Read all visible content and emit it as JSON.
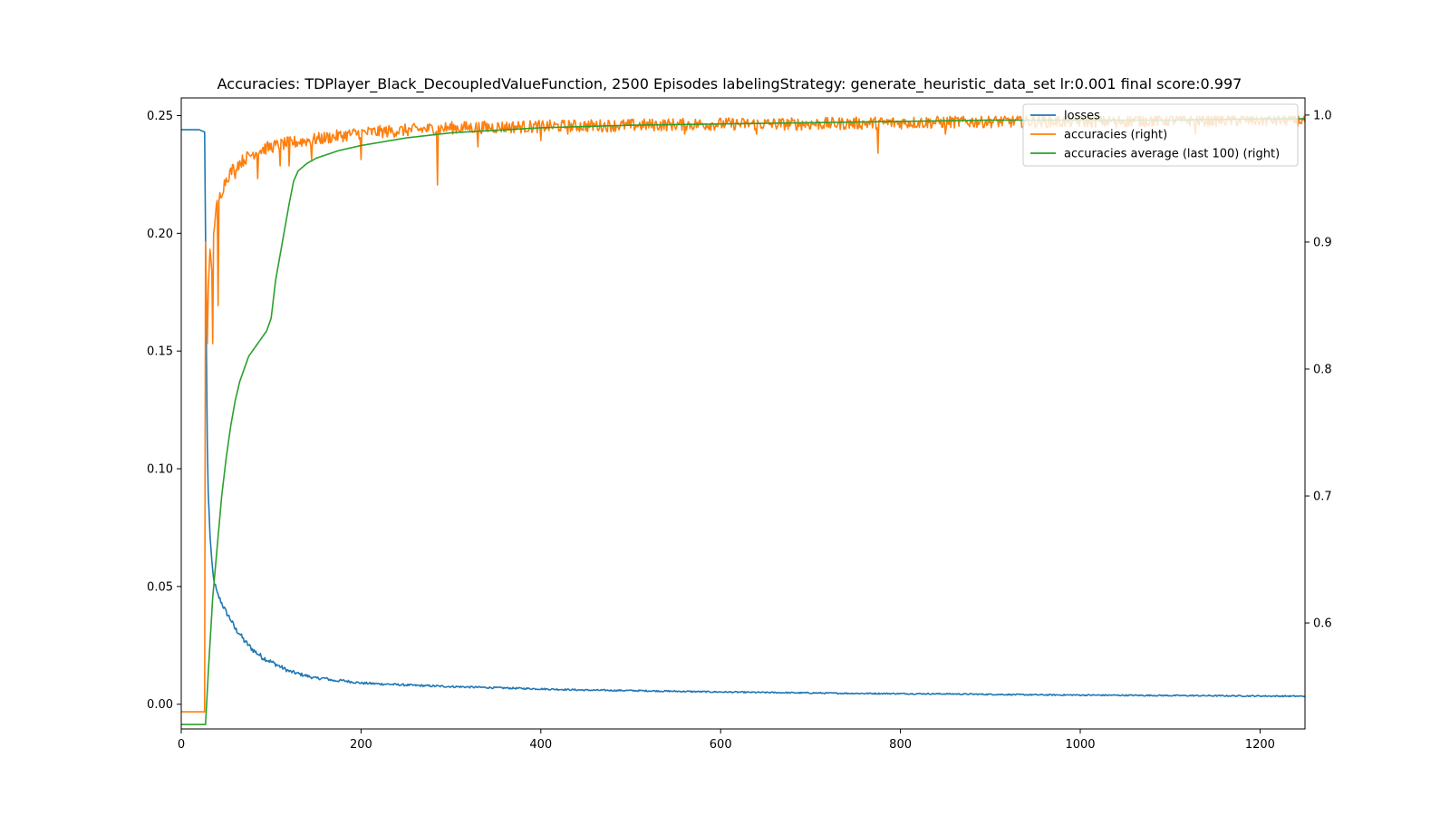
{
  "chart_data": {
    "type": "line",
    "title": "Accuracies: TDPlayer_Black_DecoupledValueFunction, 2500 Episodes labelingStrategy: generate_heuristic_data_set lr:0.001 final score:0.997",
    "xlabel": "",
    "ylabel": "",
    "xlim": [
      0,
      1250
    ],
    "ylim": [
      -0.0105,
      0.2575
    ],
    "y2lim": [
      0.5165,
      1.0135
    ],
    "xticks": [
      "0",
      "200",
      "400",
      "600",
      "800",
      "1000",
      "1200"
    ],
    "yticks": [
      "0.00",
      "0.05",
      "0.10",
      "0.15",
      "0.20",
      "0.25"
    ],
    "y2ticks": [
      "0.6",
      "0.7",
      "0.8",
      "0.9",
      "1.0"
    ],
    "grid": false,
    "legend_position": "top-right",
    "series": [
      {
        "name": "losses",
        "axis": "left",
        "color": "#1f77b4",
        "x": [
          0,
          10,
          20,
          26,
          27,
          28,
          29,
          30,
          32,
          34,
          36,
          38,
          40,
          45,
          50,
          55,
          60,
          65,
          70,
          75,
          80,
          90,
          100,
          110,
          120,
          130,
          140,
          150,
          160,
          170,
          180,
          200,
          230,
          260,
          300,
          350,
          400,
          450,
          500,
          550,
          600,
          650,
          700,
          750,
          800,
          850,
          900,
          950,
          1000,
          1050,
          1100,
          1150,
          1200,
          1250
        ],
        "y": [
          0.244,
          0.244,
          0.244,
          0.243,
          0.2,
          0.15,
          0.11,
          0.09,
          0.072,
          0.06,
          0.053,
          0.05,
          0.047,
          0.043,
          0.039,
          0.036,
          0.032,
          0.03,
          0.027,
          0.025,
          0.023,
          0.02,
          0.018,
          0.016,
          0.014,
          0.013,
          0.012,
          0.011,
          0.011,
          0.01,
          0.01,
          0.009,
          0.0085,
          0.008,
          0.0075,
          0.007,
          0.0065,
          0.006,
          0.0058,
          0.0055,
          0.0052,
          0.005,
          0.0048,
          0.0046,
          0.0045,
          0.0044,
          0.0042,
          0.004,
          0.0039,
          0.0038,
          0.0037,
          0.0036,
          0.0035,
          0.0034
        ],
        "noise": 0.0011
      },
      {
        "name": "accuracies (right)",
        "axis": "right",
        "color": "#ff7f0e",
        "x": [
          0,
          26,
          27,
          28,
          29,
          30,
          32,
          34,
          36,
          38,
          40,
          45,
          50,
          55,
          60,
          70,
          80,
          90,
          100,
          120,
          140,
          160,
          180,
          200,
          250,
          300,
          400,
          500,
          600,
          700,
          800,
          900,
          1000,
          1100,
          1200,
          1250
        ],
        "y": [
          0.53,
          0.53,
          0.9,
          0.86,
          0.82,
          0.86,
          0.89,
          0.88,
          0.91,
          0.92,
          0.93,
          0.94,
          0.95,
          0.955,
          0.96,
          0.965,
          0.97,
          0.973,
          0.975,
          0.978,
          0.98,
          0.982,
          0.984,
          0.986,
          0.988,
          0.99,
          0.991,
          0.992,
          0.993,
          0.993,
          0.994,
          0.995,
          0.995,
          0.996,
          0.996,
          0.996
        ],
        "noise": 0.005,
        "dips": [
          [
            35,
            0.82
          ],
          [
            41,
            0.85
          ],
          [
            60,
            0.95
          ],
          [
            85,
            0.95
          ],
          [
            110,
            0.96
          ],
          [
            120,
            0.96
          ],
          [
            145,
            0.965
          ],
          [
            200,
            0.965
          ],
          [
            285,
            0.945
          ],
          [
            330,
            0.975
          ],
          [
            400,
            0.98
          ],
          [
            430,
            0.985
          ],
          [
            560,
            0.985
          ],
          [
            640,
            0.985
          ],
          [
            775,
            0.97
          ],
          [
            850,
            0.985
          ],
          [
            1040,
            0.99
          ],
          [
            1128,
            0.985
          ]
        ]
      },
      {
        "name": "accuracies average (last 100) (right)",
        "axis": "right",
        "color": "#2ca02c",
        "x": [
          0,
          27,
          30,
          35,
          40,
          45,
          50,
          55,
          60,
          65,
          70,
          75,
          80,
          85,
          90,
          95,
          100,
          105,
          110,
          115,
          120,
          125,
          130,
          140,
          150,
          175,
          200,
          250,
          300,
          400,
          500,
          600,
          700,
          800,
          900,
          1000,
          1100,
          1200,
          1250
        ],
        "y": [
          0.52,
          0.52,
          0.56,
          0.62,
          0.66,
          0.7,
          0.73,
          0.755,
          0.775,
          0.79,
          0.8,
          0.81,
          0.815,
          0.82,
          0.825,
          0.83,
          0.84,
          0.87,
          0.89,
          0.91,
          0.93,
          0.948,
          0.956,
          0.962,
          0.966,
          0.972,
          0.976,
          0.982,
          0.986,
          0.99,
          0.992,
          0.993,
          0.994,
          0.995,
          0.996,
          0.996,
          0.996,
          0.997,
          0.997
        ]
      }
    ]
  }
}
